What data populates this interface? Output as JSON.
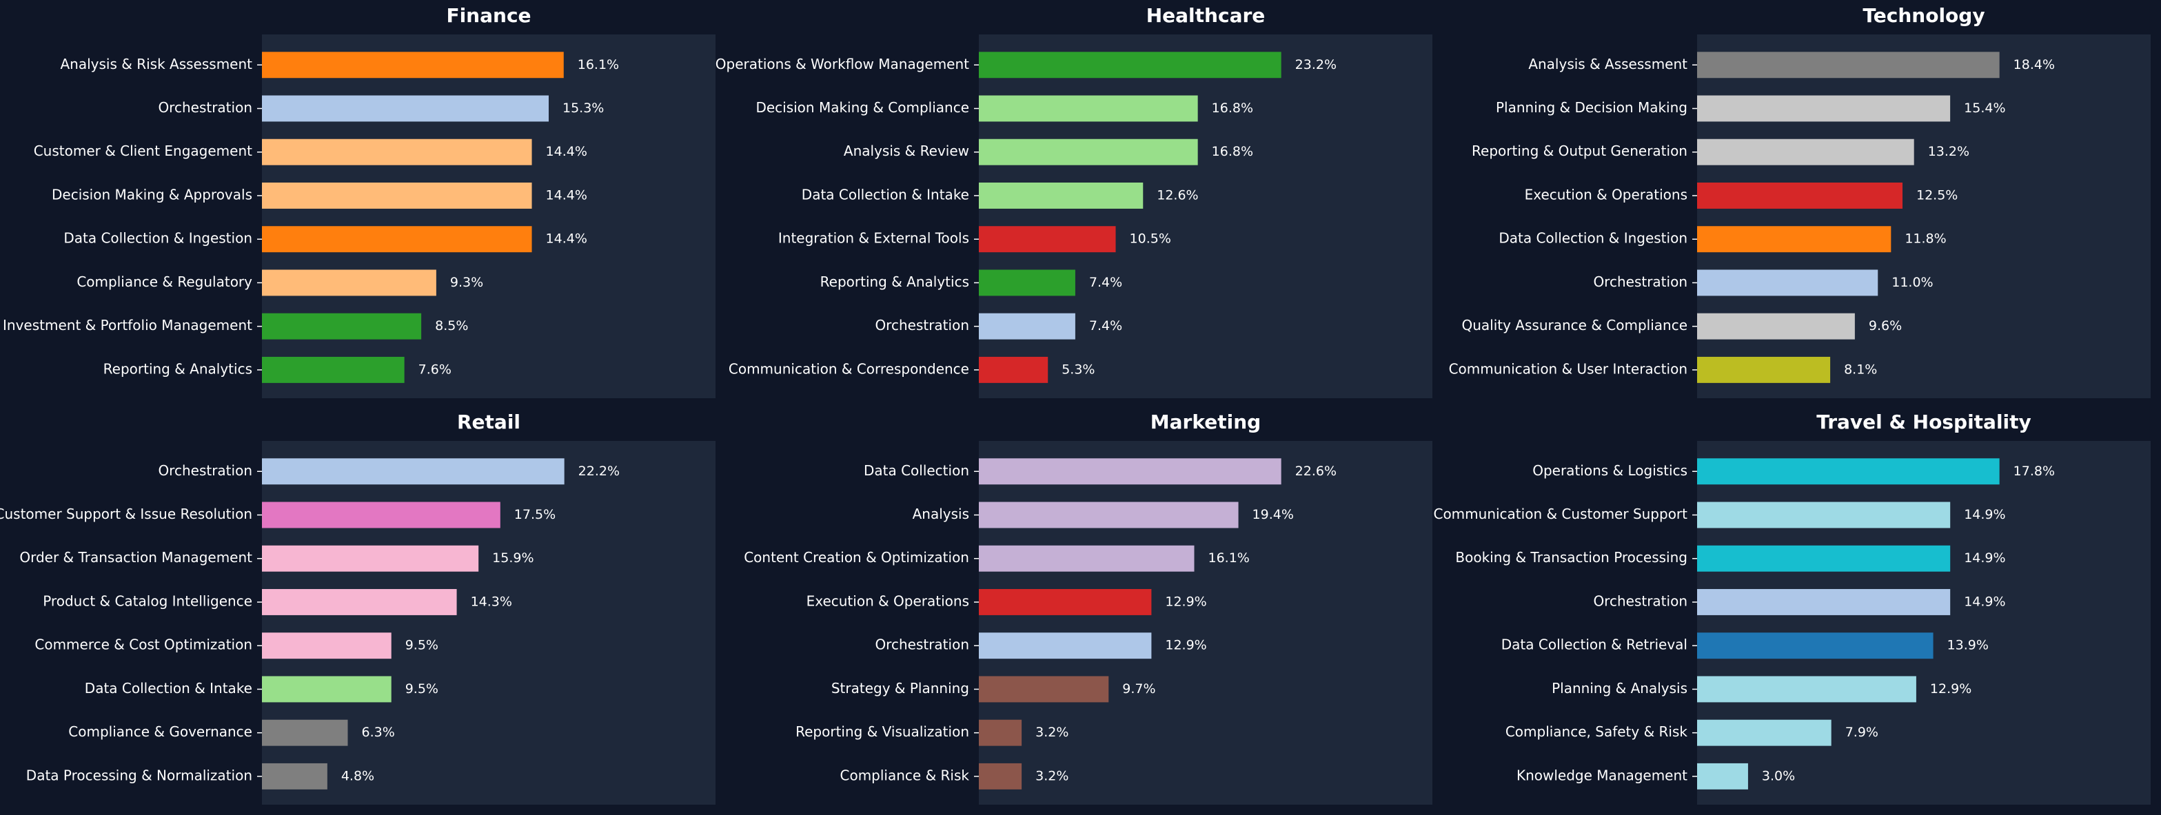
{
  "chart_data": [
    {
      "type": "bar",
      "title": "Finance",
      "categories": [
        "Analysis & Risk Assessment",
        "Orchestration",
        "Customer & Client Engagement",
        "Decision Making & Approvals",
        "Data Collection & Ingestion",
        "Compliance & Regulatory",
        "Investment & Portfolio Management",
        "Reporting & Analytics"
      ],
      "values": [
        16.1,
        15.3,
        14.4,
        14.4,
        14.4,
        9.3,
        8.5,
        7.6
      ],
      "value_labels": [
        "16.1%",
        "15.3%",
        "14.4%",
        "14.4%",
        "14.4%",
        "9.3%",
        "8.5%",
        "7.6%"
      ],
      "colors": [
        "#ff7f0e",
        "#aec7e8",
        "#ffbb78",
        "#ffbb78",
        "#ff7f0e",
        "#ffbb78",
        "#2ca02c",
        "#2ca02c"
      ],
      "xlim": [
        0,
        24.2
      ]
    },
    {
      "type": "bar",
      "title": "Healthcare",
      "categories": [
        "Operations & Workflow Management",
        "Decision Making & Compliance",
        "Analysis & Review",
        "Data Collection & Intake",
        "Integration & External Tools",
        "Reporting & Analytics",
        "Orchestration",
        "Communication & Correspondence"
      ],
      "values": [
        23.2,
        16.8,
        16.8,
        12.6,
        10.5,
        7.4,
        7.4,
        5.3
      ],
      "value_labels": [
        "23.2%",
        "16.8%",
        "16.8%",
        "12.6%",
        "10.5%",
        "7.4%",
        "7.4%",
        "5.3%"
      ],
      "colors": [
        "#2ca02c",
        "#98df8a",
        "#98df8a",
        "#98df8a",
        "#d62728",
        "#2ca02c",
        "#aec7e8",
        "#d62728"
      ],
      "xlim": [
        0,
        34.8
      ]
    },
    {
      "type": "bar",
      "title": "Technology",
      "categories": [
        "Analysis & Assessment",
        "Planning & Decision Making",
        "Reporting & Output Generation",
        "Execution & Operations",
        "Data Collection & Ingestion",
        "Orchestration",
        "Quality Assurance & Compliance",
        "Communication & User Interaction"
      ],
      "values": [
        18.4,
        15.4,
        13.2,
        12.5,
        11.8,
        11.0,
        9.6,
        8.1
      ],
      "value_labels": [
        "18.4%",
        "15.4%",
        "13.2%",
        "12.5%",
        "11.8%",
        "11.0%",
        "9.6%",
        "8.1%"
      ],
      "colors": [
        "#7f7f7f",
        "#c7c7c7",
        "#c7c7c7",
        "#d62728",
        "#ff7f0e",
        "#aec7e8",
        "#c7c7c7",
        "#bcbd22"
      ],
      "xlim": [
        0,
        27.6
      ]
    },
    {
      "type": "bar",
      "title": "Retail",
      "categories": [
        "Orchestration",
        "Customer Support & Issue Resolution",
        "Order & Transaction Management",
        "Product & Catalog Intelligence",
        "Commerce & Cost Optimization",
        "Data Collection & Intake",
        "Compliance & Governance",
        "Data Processing & Normalization"
      ],
      "values": [
        22.2,
        17.5,
        15.9,
        14.3,
        9.5,
        9.5,
        6.3,
        4.8
      ],
      "value_labels": [
        "22.2%",
        "17.5%",
        "15.9%",
        "14.3%",
        "9.5%",
        "9.5%",
        "6.3%",
        "4.8%"
      ],
      "colors": [
        "#aec7e8",
        "#e377c2",
        "#f7b6d2",
        "#f7b6d2",
        "#f7b6d2",
        "#98df8a",
        "#7f7f7f",
        "#7f7f7f"
      ],
      "xlim": [
        0,
        33.3
      ]
    },
    {
      "type": "bar",
      "title": "Marketing",
      "categories": [
        "Data Collection",
        "Analysis",
        "Content Creation & Optimization",
        "Execution & Operations",
        "Orchestration",
        "Strategy & Planning",
        "Reporting & Visualization",
        "Compliance & Risk"
      ],
      "values": [
        22.6,
        19.4,
        16.1,
        12.9,
        12.9,
        9.7,
        3.2,
        3.2
      ],
      "value_labels": [
        "22.6%",
        "19.4%",
        "16.1%",
        "12.9%",
        "12.9%",
        "9.7%",
        "3.2%",
        "3.2%"
      ],
      "colors": [
        "#c5b0d5",
        "#c5b0d5",
        "#c5b0d5",
        "#d62728",
        "#aec7e8",
        "#8c564b",
        "#8c564b",
        "#8c564b"
      ],
      "xlim": [
        0,
        33.9
      ]
    },
    {
      "type": "bar",
      "title": "Travel & Hospitality",
      "categories": [
        "Operations & Logistics",
        "Communication & Customer Support",
        "Booking & Transaction Processing",
        "Orchestration",
        "Data Collection & Retrieval",
        "Planning & Analysis",
        "Compliance, Safety & Risk",
        "Knowledge Management"
      ],
      "values": [
        17.8,
        14.9,
        14.9,
        14.9,
        13.9,
        12.9,
        7.9,
        3.0
      ],
      "value_labels": [
        "17.8%",
        "14.9%",
        "14.9%",
        "14.9%",
        "13.9%",
        "12.9%",
        "7.9%",
        "3.0%"
      ],
      "colors": [
        "#17becf",
        "#9edae5",
        "#17becf",
        "#aec7e8",
        "#1f77b4",
        "#9edae5",
        "#9edae5",
        "#9edae5"
      ],
      "xlim": [
        0,
        26.7
      ]
    }
  ]
}
